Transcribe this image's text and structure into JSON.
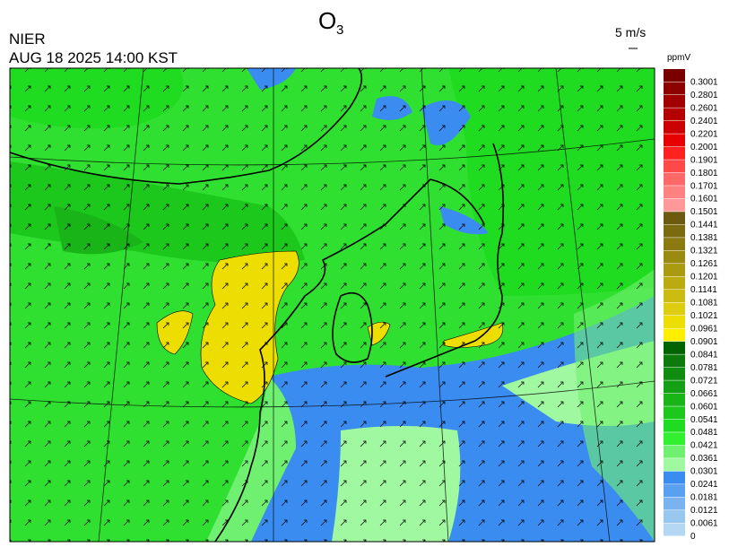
{
  "header": {
    "title": "O",
    "title_subscript": "3",
    "agency": "NIER",
    "datetime": "AUG 18 2025 14:00 KST",
    "wind_scale": "5 m/s"
  },
  "legend": {
    "unit": "ppmV",
    "items": [
      {
        "label": "0.3001",
        "color": "#7a0000"
      },
      {
        "label": "0.2801",
        "color": "#8c0000"
      },
      {
        "label": "0.2601",
        "color": "#a00000"
      },
      {
        "label": "0.2401",
        "color": "#b40000"
      },
      {
        "label": "0.2201",
        "color": "#cc0000"
      },
      {
        "label": "0.2001",
        "color": "#e60000"
      },
      {
        "label": "0.1901",
        "color": "#ff2020"
      },
      {
        "label": "0.1801",
        "color": "#ff4848"
      },
      {
        "label": "0.1701",
        "color": "#ff6868"
      },
      {
        "label": "0.1601",
        "color": "#ff8080"
      },
      {
        "label": "0.1501",
        "color": "#ff9898"
      },
      {
        "label": "0.1441",
        "color": "#6b5a10"
      },
      {
        "label": "0.1381",
        "color": "#7a6a10"
      },
      {
        "label": "0.1321",
        "color": "#8a7a10"
      },
      {
        "label": "0.1261",
        "color": "#9a8a10"
      },
      {
        "label": "0.1201",
        "color": "#aa9a10"
      },
      {
        "label": "0.1141",
        "color": "#bbaa10"
      },
      {
        "label": "0.1081",
        "color": "#ccbb10"
      },
      {
        "label": "0.1021",
        "color": "#ddcc10"
      },
      {
        "label": "0.0961",
        "color": "#eedd00"
      },
      {
        "label": "0.0901",
        "color": "#ffee00"
      },
      {
        "label": "0.0841",
        "color": "#006400"
      },
      {
        "label": "0.0781",
        "color": "#0c7a0c"
      },
      {
        "label": "0.0721",
        "color": "#108c10"
      },
      {
        "label": "0.0661",
        "color": "#14a014"
      },
      {
        "label": "0.0601",
        "color": "#18b418"
      },
      {
        "label": "0.0541",
        "color": "#1cc81c"
      },
      {
        "label": "0.0481",
        "color": "#20dc20"
      },
      {
        "label": "0.0421",
        "color": "#30f030"
      },
      {
        "label": "0.0361",
        "color": "#70f070"
      },
      {
        "label": "0.0301",
        "color": "#a0f8a0"
      },
      {
        "label": "0.0241",
        "color": "#3a8cf0"
      },
      {
        "label": "0.0181",
        "color": "#5aa0f0"
      },
      {
        "label": "0.0121",
        "color": "#7ab4f0"
      },
      {
        "label": "0.0061",
        "color": "#98c8f0"
      },
      {
        "label": "0",
        "color": "#b4d8f4"
      }
    ]
  }
}
